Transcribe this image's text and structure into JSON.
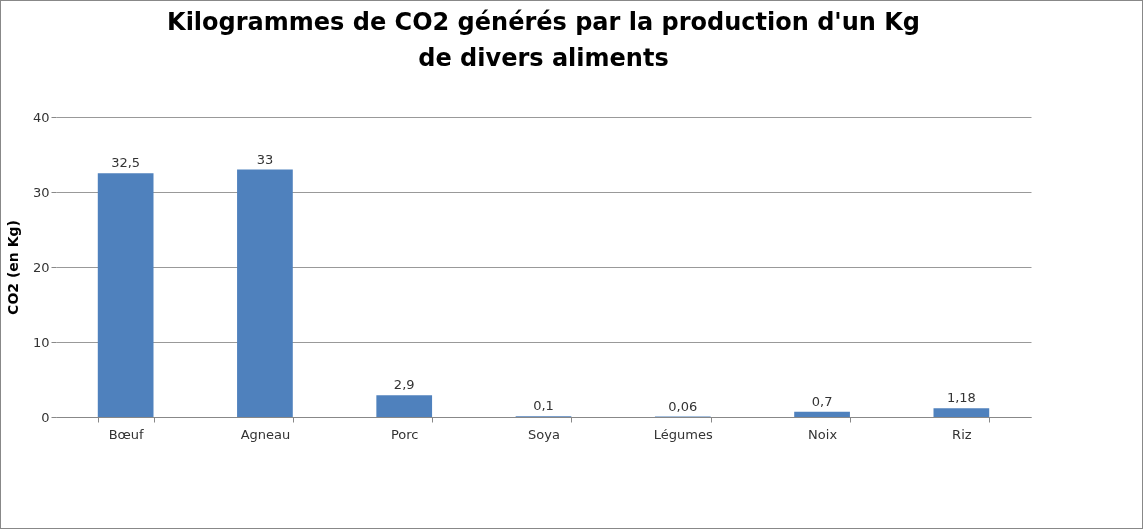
{
  "chart_data": {
    "type": "bar",
    "title": "Kilogrammes de CO2 générés par la production d'un Kg\nde divers aliments",
    "ylabel": "CO2 (en Kg)",
    "categories": [
      "Bœuf",
      "Agneau",
      "Porc",
      "Soya",
      "Légumes",
      "Noix",
      "Riz"
    ],
    "values": [
      32.5,
      33,
      2.9,
      0.1,
      0.06,
      0.7,
      1.18
    ],
    "value_labels": [
      "32,5",
      "33",
      "2,9",
      "0,1",
      "0,06",
      "0,7",
      "1,18"
    ],
    "color": "#4f81bd",
    "ylim": [
      0,
      40
    ],
    "yticks": [
      0,
      10,
      20,
      30,
      40
    ],
    "grid": "y"
  }
}
